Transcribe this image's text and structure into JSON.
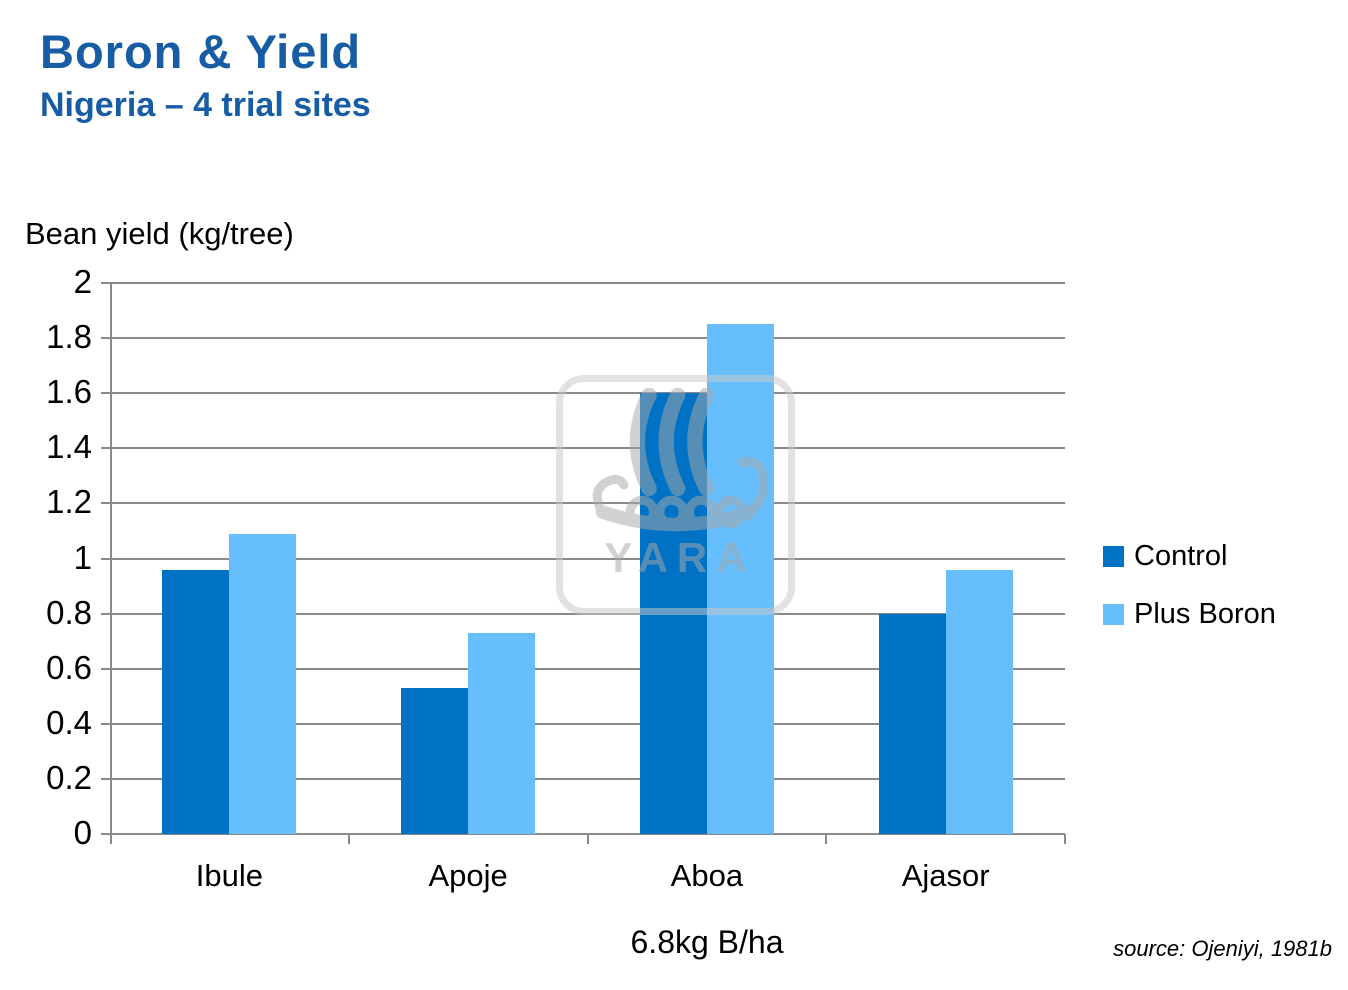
{
  "header": {
    "title": "Boron & Yield",
    "subtitle": "Nigeria – 4 trial sites"
  },
  "chart_data": {
    "type": "bar",
    "title": "",
    "ylabel": "Bean yield (kg/tree)",
    "xlabel": "6.8kg B/ha",
    "categories": [
      "Ibule",
      "Apoje",
      "Aboa",
      "Ajasor"
    ],
    "series": [
      {
        "name": "Control",
        "color": "#0072C6",
        "values": [
          0.96,
          0.53,
          1.6,
          0.8
        ]
      },
      {
        "name": "Plus Boron",
        "color": "#66BEFC",
        "values": [
          1.09,
          0.73,
          1.85,
          0.96
        ]
      }
    ],
    "ylim": [
      0,
      2
    ],
    "ytick_step": 0.2,
    "yticks": [
      "2",
      "1.8",
      "1.6",
      "1.4",
      "1.2",
      "1",
      "0.8",
      "0.6",
      "0.4",
      "0.2",
      "0"
    ],
    "grid": true,
    "legend_position": "right",
    "gridline_color": "#8a8a8a"
  },
  "watermark": {
    "text": "YARA",
    "icon": "viking-ship"
  },
  "source": "source: Ojeniyi, 1981b",
  "colors": {
    "heading_blue": "#175DA5",
    "control_bar": "#0072C6",
    "plus_boron_bar": "#66BEFC"
  }
}
